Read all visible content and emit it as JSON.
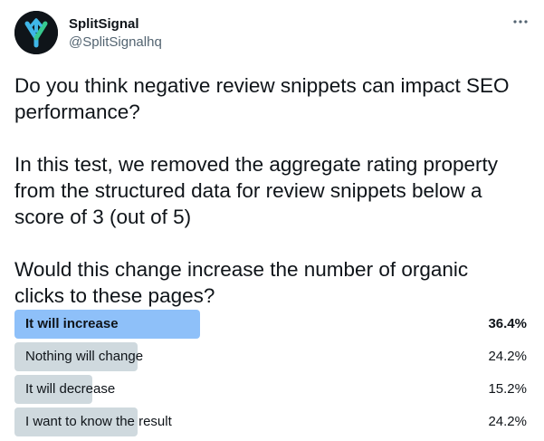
{
  "account": {
    "display_name": "SplitSignal",
    "handle": "@SplitSignalhq",
    "avatar_icon": "splitsignal-logo-icon"
  },
  "menu": {
    "icon": "more-horizontal-icon"
  },
  "tweet": {
    "paragraphs": [
      "Do you think negative review snippets can impact SEO\nperformance?",
      "In this test, we removed the aggregate rating property\nfrom the structured data for review snippets below a\nscore of 3 (out of 5)",
      "Would this change increase the number of organic\nclicks to these pages?"
    ]
  },
  "poll": {
    "options": [
      {
        "label": "It will increase",
        "percent": "36.4%",
        "value": 36.4,
        "winner": true
      },
      {
        "label": "Nothing will change",
        "percent": "24.2%",
        "value": 24.2,
        "winner": false
      },
      {
        "label": "It will decrease",
        "percent": "15.2%",
        "value": 15.2,
        "winner": false
      },
      {
        "label": "I want to know the result",
        "percent": "24.2%",
        "value": 24.2,
        "winner": false
      }
    ]
  },
  "colors": {
    "winner_bar": "#8ec0f9",
    "bar": "#cfd9de",
    "text": "#0f1419",
    "secondary_text": "#536471"
  }
}
